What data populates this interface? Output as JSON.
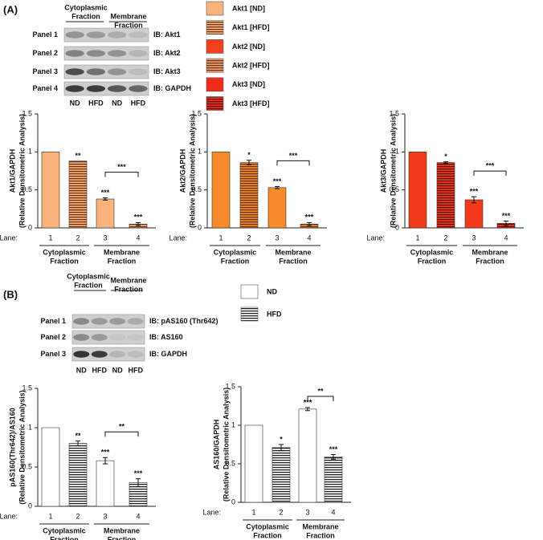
{
  "figure": {
    "panel_a": {
      "label": "(A)",
      "blot": {
        "header": [
          [
            "Cytoplasmic",
            "Fraction"
          ],
          [
            "Membrane",
            "Fraction"
          ]
        ],
        "rows": [
          "Panel 1",
          "Panel 2",
          "Panel 3",
          "Panel 4"
        ],
        "ib": [
          "IB: Akt1",
          "IB: Akt2",
          "IB: Akt3",
          "IB: GAPDH"
        ],
        "lanes": [
          "ND",
          "HFD",
          "ND",
          "HFD"
        ]
      },
      "legend": [
        {
          "name": "Akt1 [ND]",
          "color": "#f9b27b",
          "hatch": false
        },
        {
          "name": "Akt1 [HFD]",
          "color": "#f9b27b",
          "hatch": true,
          "hatch_color": "#6b3215"
        },
        {
          "name": "Akt2 [ND]",
          "color": "#f5401c",
          "hatch": false
        },
        {
          "name": "Akt2 [HFD]",
          "color": "#f5a070",
          "hatch": true,
          "hatch_color": "#6b3215"
        },
        {
          "name": "Akt3 [ND]",
          "color": "#f02c18",
          "hatch": false
        },
        {
          "name": "Akt3 [HFD]",
          "color": "#f02c18",
          "hatch": true,
          "hatch_color": "#5a1208"
        }
      ]
    },
    "panel_b": {
      "label": "(B)",
      "blot": {
        "header": [
          [
            "Cytoplasmic",
            "Fraction"
          ],
          [
            "Membrane",
            "Fraction"
          ]
        ],
        "rows": [
          "Panel 1",
          "Panel 2",
          "Panel 3"
        ],
        "ib": [
          "IB: pAS160 (Thr642)",
          "IB: AS160",
          "IB: GAPDH"
        ],
        "lanes": [
          "ND",
          "HFD",
          "ND",
          "HFD"
        ]
      },
      "legend": [
        {
          "name": "ND",
          "color": "#ffffff",
          "hatch": false
        },
        {
          "name": "HFD",
          "color": "#ffffff",
          "hatch": true,
          "hatch_color": "#222222"
        }
      ]
    }
  },
  "chart_data": [
    {
      "type": "bar",
      "ylabel": "Akt1/GAPDH",
      "ylabel_note": "(Relative Densitometric Analysis)",
      "x_label": "Lane:",
      "categories": [
        "1",
        "2",
        "3",
        "4"
      ],
      "values": [
        1,
        0.88,
        0.38,
        0.05
      ],
      "errors": [
        null,
        null,
        0.015,
        0.02
      ],
      "annotations": [
        null,
        "**",
        "***",
        "***"
      ],
      "bracket_label": "***",
      "color": "#f9b27b",
      "hatch": [
        false,
        true,
        false,
        true
      ],
      "hatch_color": "#6b3215",
      "groups": [
        [
          "Cytoplasmic",
          "Fraction"
        ],
        [
          "Membrane",
          "Fraction"
        ]
      ],
      "ylim": [
        0,
        1.5
      ],
      "yticks": [
        0,
        0.5,
        1,
        1.5
      ]
    },
    {
      "type": "bar",
      "ylabel": "Akt2/GAPDH",
      "ylabel_note": "(Relative Densitometric Analysis)",
      "x_label": "Lane:",
      "categories": [
        "1",
        "2",
        "3",
        "4"
      ],
      "values": [
        1,
        0.86,
        0.53,
        0.05
      ],
      "errors": [
        null,
        0.03,
        0.015,
        0.02
      ],
      "annotations": [
        null,
        "*",
        "***",
        "***"
      ],
      "bracket_label": "***",
      "color": "#f48a2a",
      "hatch": [
        false,
        true,
        false,
        true
      ],
      "hatch_color": "#6b3215",
      "groups": [
        [
          "Cytoplasmic",
          "Fraction"
        ],
        [
          "Membrane",
          "Fraction"
        ]
      ],
      "ylim": [
        0,
        1.5
      ],
      "yticks": [
        0,
        0.5,
        1,
        1.5
      ]
    },
    {
      "type": "bar",
      "ylabel": "Akt3/GAPDH",
      "ylabel_note": "(Relative Densitometric Analysis)",
      "x_label": "Lane:",
      "categories": [
        "1",
        "2",
        "3",
        "4"
      ],
      "values": [
        1,
        0.86,
        0.37,
        0.06
      ],
      "errors": [
        null,
        0.01,
        0.04,
        0.03
      ],
      "annotations": [
        null,
        "*",
        "***",
        "***"
      ],
      "bracket_label": "***",
      "color": "#f03a1a",
      "hatch": [
        false,
        true,
        false,
        true
      ],
      "hatch_color": "#5a1208",
      "groups": [
        [
          "Cytoplasmic",
          "Fraction"
        ],
        [
          "Membrane",
          "Fraction"
        ]
      ],
      "ylim": [
        0,
        1.5
      ],
      "yticks": [
        0,
        0.5,
        1,
        1.5
      ]
    },
    {
      "type": "bar",
      "ylabel": "pAS160(Thr642)/AS160",
      "ylabel_note": "(Relative Densitometric Analysis)",
      "x_label": "Lane:",
      "categories": [
        "1",
        "2",
        "3",
        "4"
      ],
      "values": [
        1,
        0.8,
        0.58,
        0.3
      ],
      "errors": [
        null,
        0.03,
        0.04,
        0.05
      ],
      "annotations": [
        null,
        "**",
        "***",
        "***"
      ],
      "bracket_label": "**",
      "color": "#ffffff",
      "hatch": [
        false,
        true,
        false,
        true
      ],
      "hatch_color": "#222222",
      "groups": [
        [
          "Cytoplasmic",
          "Fraction"
        ],
        [
          "Membrane",
          "Fraction"
        ]
      ],
      "ylim": [
        0,
        1.5
      ],
      "yticks": [
        0,
        0.5,
        1,
        1.5
      ]
    },
    {
      "type": "bar",
      "ylabel": "AS160/GAPDH",
      "ylabel_note": "(Relative Densitometric Analysis)",
      "x_label": "Lane:",
      "categories": [
        "1",
        "2",
        "3",
        "4"
      ],
      "values": [
        1,
        0.71,
        1.21,
        0.59
      ],
      "errors": [
        null,
        0.04,
        0.02,
        0.03
      ],
      "annotations": [
        null,
        "*",
        "***",
        "***"
      ],
      "bracket_label": "**",
      "color": "#ffffff",
      "hatch": [
        false,
        true,
        false,
        true
      ],
      "hatch_color": "#222222",
      "groups": [
        [
          "Cytoplasmic",
          "Fraction"
        ],
        [
          "Membrane",
          "Fraction"
        ]
      ],
      "ylim": [
        0,
        1.5
      ],
      "yticks": [
        0,
        0.5,
        1,
        1.5
      ]
    }
  ]
}
